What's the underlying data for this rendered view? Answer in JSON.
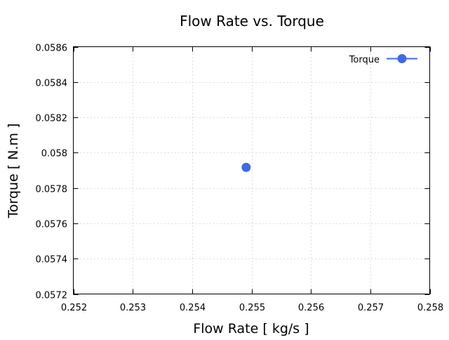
{
  "chart_data": {
    "type": "scatter",
    "title": "Flow Rate vs. Torque",
    "xlabel": "Flow Rate [ kg/s ]",
    "ylabel": "Torque [ N.m ]",
    "xlim": [
      0.252,
      0.258
    ],
    "ylim": [
      0.0572,
      0.0586
    ],
    "xticks": [
      "0.252",
      "0.253",
      "0.254",
      "0.255",
      "0.256",
      "0.257",
      "0.258"
    ],
    "yticks": [
      "0.0572",
      "0.0574",
      "0.0576",
      "0.0578",
      "0.058",
      "0.0582",
      "0.0584",
      "0.0586"
    ],
    "grid": true,
    "legend_position": "top-right",
    "series": [
      {
        "name": "Torque",
        "color": "#4169e1",
        "x": [
          0.25491
        ],
        "y": [
          0.057917
        ]
      }
    ]
  }
}
